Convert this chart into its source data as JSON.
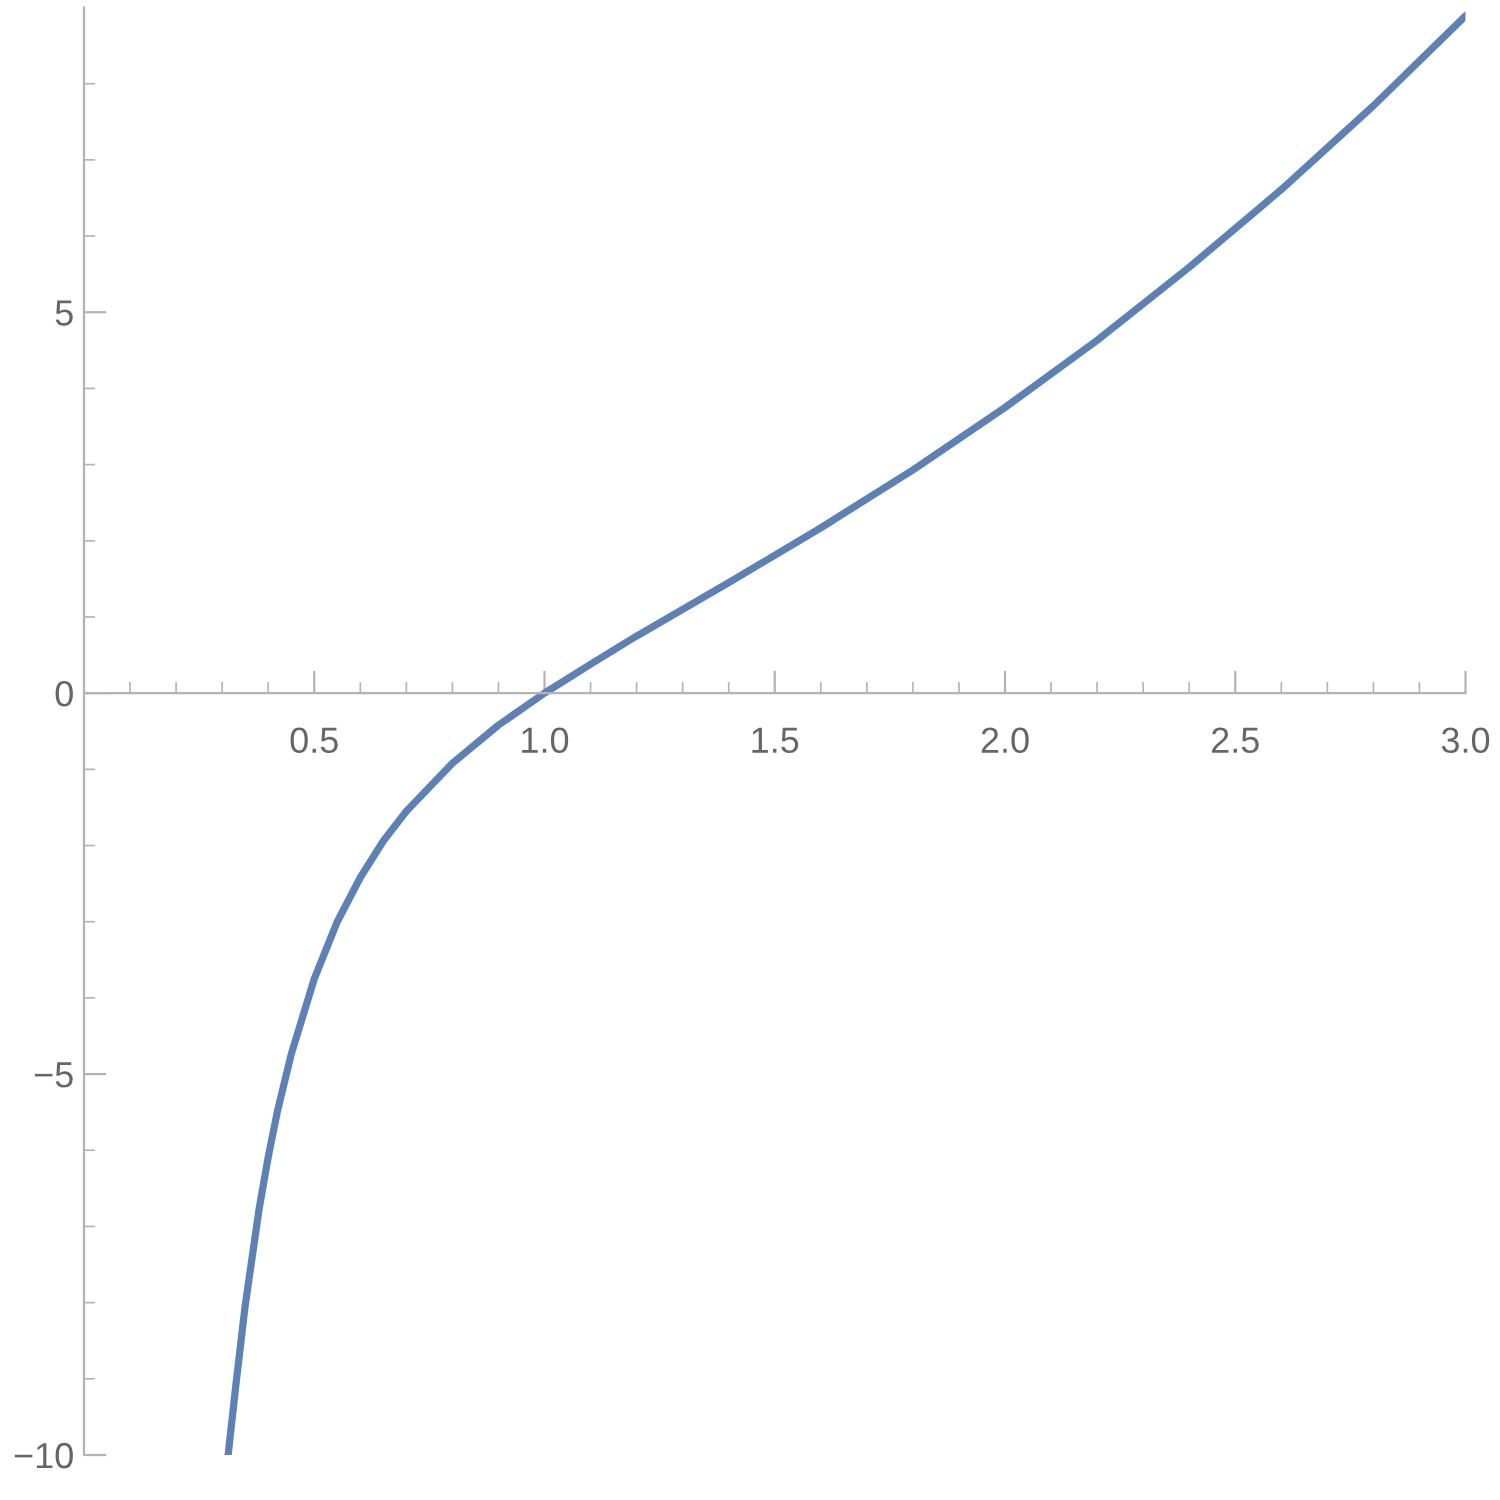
{
  "chart_data": {
    "type": "line",
    "x": [
      0.313,
      0.33,
      0.35,
      0.38,
      0.4,
      0.42,
      0.45,
      0.5,
      0.55,
      0.6,
      0.65,
      0.7,
      0.8,
      0.9,
      1.0,
      1.1,
      1.2,
      1.4,
      1.6,
      1.8,
      2.0,
      2.2,
      2.4,
      2.6,
      2.8,
      3.0
    ],
    "series": [
      {
        "color": "#5e81b5",
        "values": [
          -10,
          -9.07,
          -8.04,
          -6.78,
          -6.09,
          -5.49,
          -4.74,
          -3.75,
          -3.0,
          -2.42,
          -1.94,
          -1.55,
          -0.92,
          -0.42,
          0,
          0.38,
          0.75,
          1.45,
          2.17,
          2.93,
          3.75,
          4.63,
          5.59,
          6.61,
          7.71,
          8.89
        ]
      }
    ],
    "xlim": [
      0,
      3.0
    ],
    "ylim": [
      -10,
      9.0
    ],
    "xticks": [
      {
        "value": 0.1,
        "label": null
      },
      {
        "value": 0.2,
        "label": null
      },
      {
        "value": 0.3,
        "label": null
      },
      {
        "value": 0.4,
        "label": null
      },
      {
        "value": 0.5,
        "label": "0.5"
      },
      {
        "value": 0.6,
        "label": null
      },
      {
        "value": 0.7,
        "label": null
      },
      {
        "value": 0.8,
        "label": null
      },
      {
        "value": 0.9,
        "label": null
      },
      {
        "value": 1.0,
        "label": "1.0"
      },
      {
        "value": 1.1,
        "label": null
      },
      {
        "value": 1.2,
        "label": null
      },
      {
        "value": 1.3,
        "label": null
      },
      {
        "value": 1.4,
        "label": null
      },
      {
        "value": 1.5,
        "label": "1.5"
      },
      {
        "value": 1.6,
        "label": null
      },
      {
        "value": 1.7,
        "label": null
      },
      {
        "value": 1.8,
        "label": null
      },
      {
        "value": 1.9,
        "label": null
      },
      {
        "value": 2.0,
        "label": "2.0"
      },
      {
        "value": 2.1,
        "label": null
      },
      {
        "value": 2.2,
        "label": null
      },
      {
        "value": 2.3,
        "label": null
      },
      {
        "value": 2.4,
        "label": null
      },
      {
        "value": 2.5,
        "label": "2.5"
      },
      {
        "value": 2.6,
        "label": null
      },
      {
        "value": 2.7,
        "label": null
      },
      {
        "value": 2.8,
        "label": null
      },
      {
        "value": 2.9,
        "label": null
      },
      {
        "value": 3.0,
        "label": "3.0"
      }
    ],
    "yticks": [
      -10,
      {
        "value": -9,
        "label": null
      },
      {
        "value": -8,
        "label": null
      },
      {
        "value": -7,
        "label": null
      },
      {
        "value": -6,
        "label": null
      },
      -5,
      {
        "value": -4,
        "label": null
      },
      {
        "value": -3,
        "label": null
      },
      {
        "value": -2,
        "label": null
      },
      {
        "value": -1,
        "label": null
      },
      0,
      {
        "value": 1,
        "label": null
      },
      {
        "value": 2,
        "label": null
      },
      {
        "value": 3,
        "label": null
      },
      {
        "value": 4,
        "label": null
      },
      5,
      {
        "value": 6,
        "label": null
      },
      {
        "value": 7,
        "label": null
      },
      {
        "value": 8,
        "label": null
      }
    ],
    "grid": false,
    "marker": "none",
    "line_style": "solid"
  }
}
